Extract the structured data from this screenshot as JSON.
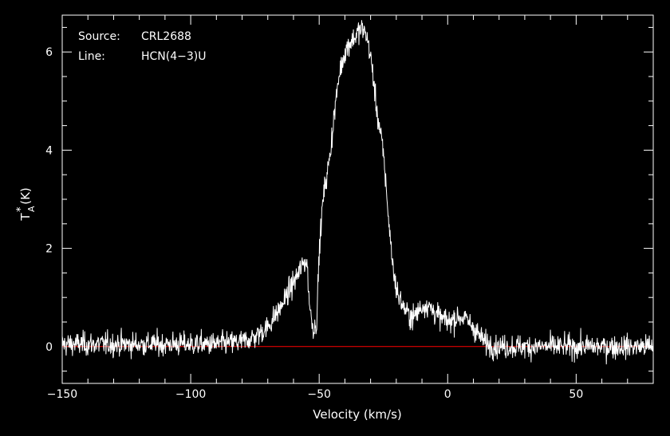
{
  "chart_data": {
    "type": "line",
    "title": "",
    "annotations": [
      {
        "label": "Source:",
        "value": "CRL2688"
      },
      {
        "label": "Line:",
        "value": "HCN(4−3)U"
      }
    ],
    "xlabel": "Velocity (km/s)",
    "ylabel": "T",
    "ylabel_superscript": "*",
    "ylabel_subscript": "A",
    "ylabel_unit": "(K)",
    "xlim": [
      -150,
      80
    ],
    "ylim": [
      -0.75,
      6.75
    ],
    "xticks": [
      -150,
      -100,
      -50,
      0,
      50
    ],
    "xtick_labels": [
      "−150",
      "−100",
      "−50",
      "0",
      "50"
    ],
    "yticks": [
      0,
      2,
      4,
      6
    ],
    "ytick_labels": [
      "0",
      "2",
      "4",
      "6"
    ],
    "grid": false,
    "colors": {
      "background": "#000000",
      "axes": "#ffffff",
      "spectrum": "#ffffff",
      "baseline": "#ff0000"
    },
    "baseline": {
      "y": 0
    },
    "series": [
      {
        "noise_rms": 0.12,
        "x": [
          -150,
          -90,
          -80,
          -75,
          -70,
          -65,
          -62,
          -60,
          -58,
          -56,
          -55,
          -54.5,
          -54,
          -53,
          -52,
          -51,
          -50,
          -49,
          -48,
          -47,
          -46,
          -45,
          -44,
          -43,
          -42,
          -41,
          -40,
          -39,
          -38,
          -37,
          -36,
          -35,
          -34,
          -33,
          -32,
          -31,
          -30,
          -29,
          -28,
          -27,
          -26,
          -25,
          -24,
          -23,
          -22,
          -21,
          -20,
          -19,
          -18,
          -17,
          -16,
          -15,
          -14,
          -13,
          -12,
          -11,
          -10,
          -9,
          -8,
          -7,
          -6,
          -5,
          -4,
          -3,
          -2,
          -1,
          0,
          2,
          4,
          6,
          8,
          10,
          12,
          14,
          16,
          20,
          80
        ],
        "y": [
          0.05,
          0.05,
          0.1,
          0.2,
          0.4,
          0.8,
          1.1,
          1.3,
          1.5,
          1.7,
          1.75,
          1.55,
          1.0,
          0.55,
          0.35,
          0.5,
          1.9,
          2.7,
          3.2,
          3.5,
          3.8,
          4.3,
          4.8,
          5.2,
          5.6,
          5.8,
          6.0,
          6.1,
          6.2,
          6.25,
          6.3,
          6.4,
          6.45,
          6.45,
          6.4,
          6.2,
          5.9,
          5.5,
          5.0,
          4.6,
          4.3,
          3.9,
          3.3,
          2.6,
          2.0,
          1.5,
          1.2,
          1.0,
          0.9,
          0.8,
          0.7,
          0.65,
          0.6,
          0.6,
          0.7,
          0.75,
          0.8,
          0.85,
          0.85,
          0.8,
          0.75,
          0.7,
          0.65,
          0.6,
          0.55,
          0.55,
          0.5,
          0.55,
          0.6,
          0.6,
          0.5,
          0.4,
          0.25,
          0.1,
          0.05,
          0.0,
          0.0
        ]
      }
    ]
  }
}
